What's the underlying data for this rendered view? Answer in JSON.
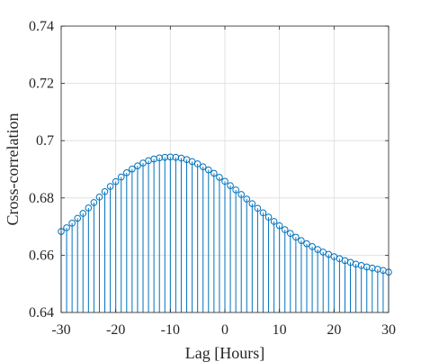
{
  "chart_data": {
    "type": "stem",
    "title": "",
    "xlabel": "Lag [Hours]",
    "ylabel": "Cross-correlation",
    "xlim": [
      -30,
      30
    ],
    "ylim": [
      0.64,
      0.74
    ],
    "xticks": [
      -30,
      -20,
      -10,
      0,
      10,
      20,
      30
    ],
    "yticks": [
      0.64,
      0.66,
      0.68,
      0.7,
      0.72,
      0.74
    ],
    "xtick_labels": [
      "-30",
      "-20",
      "-10",
      "0",
      "10",
      "20",
      "30"
    ],
    "ytick_labels": [
      "0.64",
      "0.66",
      "0.68",
      "0.7",
      "0.72",
      "0.74"
    ],
    "grid": true,
    "baseline": 0.64,
    "marker": "circle-open",
    "color": "#0072BD",
    "x": [
      -30,
      -29,
      -28,
      -27,
      -26,
      -25,
      -24,
      -23,
      -22,
      -21,
      -20,
      -19,
      -18,
      -17,
      -16,
      -15,
      -14,
      -13,
      -12,
      -11,
      -10,
      -9,
      -8,
      -7,
      -6,
      -5,
      -4,
      -3,
      -2,
      -1,
      0,
      1,
      2,
      3,
      4,
      5,
      6,
      7,
      8,
      9,
      10,
      11,
      12,
      13,
      14,
      15,
      16,
      17,
      18,
      19,
      20,
      21,
      22,
      23,
      24,
      25,
      26,
      27,
      28,
      29,
      30
    ],
    "y": [
      0.6683,
      0.6696,
      0.6712,
      0.6729,
      0.6746,
      0.6765,
      0.6784,
      0.6803,
      0.6822,
      0.684,
      0.6857,
      0.6873,
      0.6888,
      0.6901,
      0.6912,
      0.6922,
      0.693,
      0.6936,
      0.694,
      0.6942,
      0.6943,
      0.6942,
      0.6939,
      0.6934,
      0.6927,
      0.6919,
      0.6909,
      0.6898,
      0.6886,
      0.6872,
      0.6858,
      0.6843,
      0.6828,
      0.6812,
      0.6796,
      0.678,
      0.6764,
      0.6748,
      0.6733,
      0.6718,
      0.6703,
      0.6689,
      0.6676,
      0.6663,
      0.6651,
      0.664,
      0.663,
      0.662,
      0.6611,
      0.6603,
      0.6595,
      0.6588,
      0.6581,
      0.6575,
      0.6569,
      0.6564,
      0.6559,
      0.6555,
      0.6551,
      0.6547,
      0.6541
    ]
  }
}
